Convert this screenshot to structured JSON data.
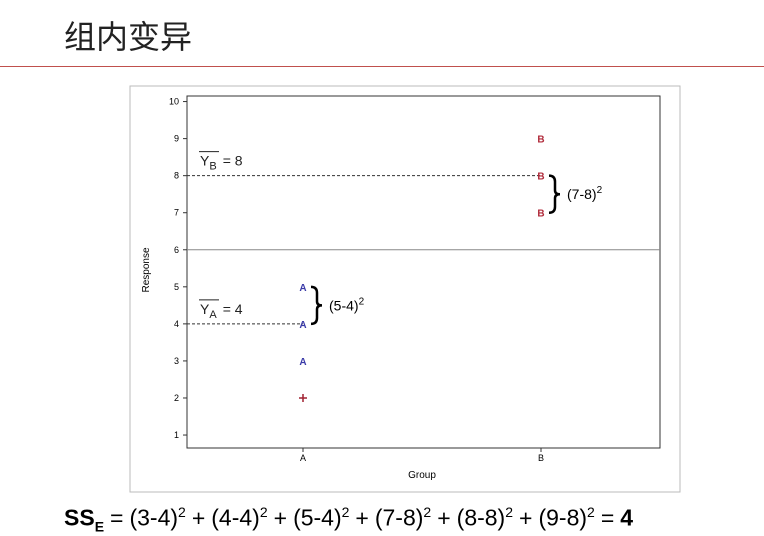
{
  "title": "组内变异",
  "chart_data": {
    "type": "scatter",
    "x_label": "Group",
    "y_label": "Response",
    "categories": [
      "A",
      "B"
    ],
    "ylim": [
      0.65,
      10.15
    ],
    "yticks": [
      1,
      2,
      3,
      4,
      5,
      6,
      7,
      8,
      9,
      10
    ],
    "series": [
      {
        "name": "A",
        "color": "#3a3aa8",
        "x": [
          "A",
          "A",
          "A"
        ],
        "values": [
          3,
          4,
          5
        ]
      },
      {
        "name": "B",
        "color": "#b02a3a",
        "x": [
          "B",
          "B",
          "B"
        ],
        "values": [
          7,
          8,
          9
        ]
      },
      {
        "marker": "plus",
        "color": "#a02030",
        "x": [
          "A"
        ],
        "values": [
          2
        ]
      }
    ],
    "reference_line": {
      "value": 6,
      "color": "#888888"
    },
    "means": [
      {
        "symbol": "Y",
        "subscript": "A",
        "text": "= 4",
        "value": 4,
        "category": "A"
      },
      {
        "symbol": "Y",
        "subscript": "B",
        "text": "= 8",
        "value": 8,
        "category": "B"
      }
    ],
    "braces": [
      {
        "text": "(5-4)",
        "superscript": "2",
        "from": 4,
        "to": 5,
        "category": "A"
      },
      {
        "text": "(7-8)",
        "superscript": "2",
        "from": 7,
        "to": 8,
        "category": "B"
      }
    ]
  },
  "formula": {
    "lhs": "SS",
    "lhs_sub": "E",
    "equals": "=",
    "operator": "+",
    "terms": [
      {
        "base": "(3-4)",
        "exp": "2"
      },
      {
        "base": "(4-4)",
        "exp": "2"
      },
      {
        "base": "(5-4)",
        "exp": "2"
      },
      {
        "base": "(7-8)",
        "exp": "2"
      },
      {
        "base": "(8-8)",
        "exp": "2"
      },
      {
        "base": "(9-8)",
        "exp": "2"
      }
    ],
    "result": "4"
  }
}
